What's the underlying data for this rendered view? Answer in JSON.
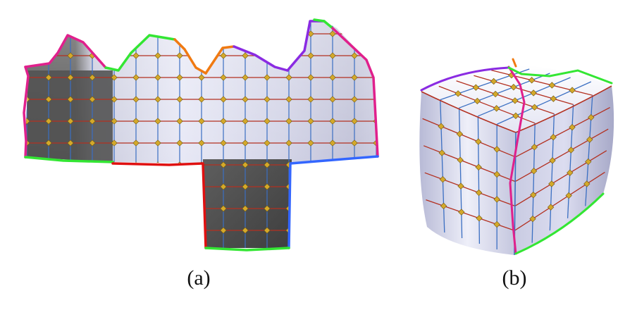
{
  "figure": {
    "panels": [
      {
        "id": "a",
        "label": "(a)",
        "content": "unfolded-quad-mesh-parameterization"
      },
      {
        "id": "b",
        "label": "(b)",
        "content": "rounded-cube-quad-mesh"
      }
    ],
    "colors": {
      "surface_light": "#e8e9f6",
      "surface_mid": "#b8bad2",
      "surface_dark": "#5a5a5a",
      "grid_blue": "#3b6fc2",
      "grid_red": "#b33020",
      "vertex_gold": "#d4a92a",
      "seam_magenta": "#e0208c",
      "seam_green": "#33e633",
      "seam_orange": "#f07a12",
      "seam_purple": "#8a2be2",
      "seam_red": "#e01010",
      "seam_blue": "#3366ff"
    }
  }
}
